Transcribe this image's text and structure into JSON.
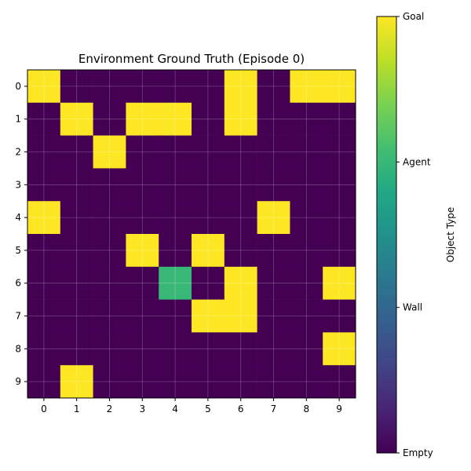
{
  "chart_data": {
    "type": "heatmap",
    "title": "Environment Ground Truth (Episode 0)",
    "xlabel": "",
    "ylabel": "",
    "x_ticks": [
      "0",
      "1",
      "2",
      "3",
      "4",
      "5",
      "6",
      "7",
      "8",
      "9"
    ],
    "y_ticks": [
      "0",
      "1",
      "2",
      "3",
      "4",
      "5",
      "6",
      "7",
      "8",
      "9"
    ],
    "grid": true,
    "colorscale": "viridis",
    "value_range": [
      0,
      3
    ],
    "matrix": [
      [
        3,
        0,
        0,
        0,
        0,
        0,
        3,
        0,
        3,
        3
      ],
      [
        0,
        3,
        0,
        3,
        3,
        0,
        3,
        0,
        0,
        0
      ],
      [
        0,
        0,
        3,
        0,
        0,
        0,
        0,
        0,
        0,
        0
      ],
      [
        0,
        0,
        0,
        0,
        0,
        0,
        0,
        0,
        0,
        0
      ],
      [
        3,
        0,
        0,
        0,
        0,
        0,
        0,
        3,
        0,
        0
      ],
      [
        0,
        0,
        0,
        3,
        0,
        3,
        0,
        0,
        0,
        0
      ],
      [
        0,
        0,
        0,
        0,
        2,
        0,
        3,
        0,
        0,
        3
      ],
      [
        0,
        0,
        0,
        0,
        0,
        3,
        3,
        0,
        0,
        0
      ],
      [
        0,
        0,
        0,
        0,
        0,
        0,
        0,
        0,
        0,
        3
      ],
      [
        0,
        3,
        0,
        0,
        0,
        0,
        0,
        0,
        0,
        0
      ]
    ],
    "colorbar": {
      "label": "Object Type",
      "ticks": [
        {
          "value": 0,
          "label": "Empty"
        },
        {
          "value": 1,
          "label": "Wall"
        },
        {
          "value": 2,
          "label": "Agent"
        },
        {
          "value": 3,
          "label": "Goal"
        }
      ]
    }
  }
}
